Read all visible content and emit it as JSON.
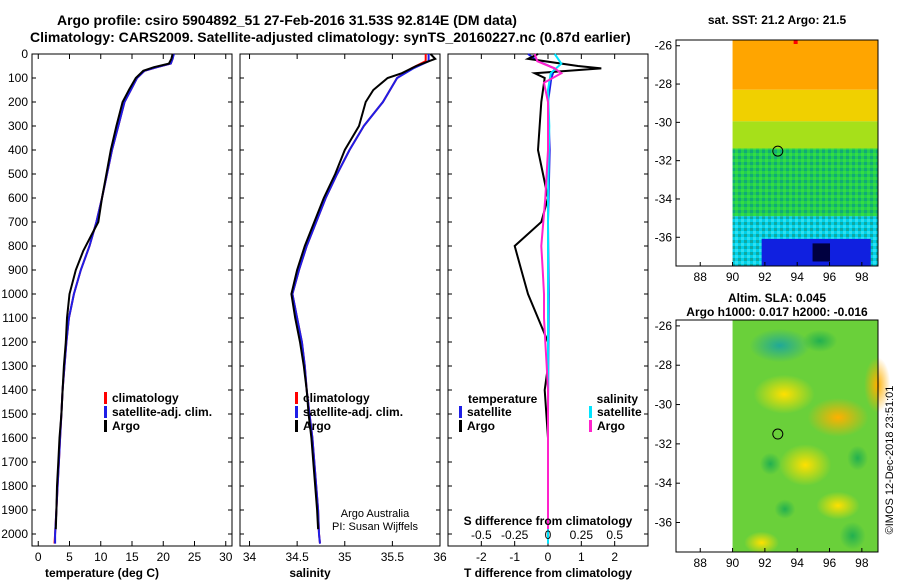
{
  "header": {
    "line1": "Argo profile: csiro 5904892_51 27-Feb-2016 31.53S 92.814E (DM data)",
    "line2": "Climatology: CARS2009. Satellite-adjusted climatology: synTS_20160227.nc (0.87d earlier)"
  },
  "colors": {
    "climatology": "#ff0000",
    "satellite": "#1e1ee6",
    "argo": "#000000",
    "sat_salinity": "#00e5ff",
    "argo_salinity": "#ff22cc"
  },
  "depth_ticks": [
    "0",
    "100",
    "200",
    "300",
    "400",
    "500",
    "600",
    "700",
    "800",
    "900",
    "1000",
    "1100",
    "1200",
    "1300",
    "1400",
    "1500",
    "1600",
    "1700",
    "1800",
    "1900",
    "2000"
  ],
  "chart_data": [
    {
      "type": "line",
      "name": "temperature",
      "xlabel": "temperature (deg C)",
      "xlim": [
        -1,
        31
      ],
      "ylim": [
        2050,
        0
      ],
      "xticks": [
        "0",
        "5",
        "10",
        "15",
        "20",
        "25",
        "30"
      ],
      "legend": {
        "climatology": "climatology",
        "satellite": "satellite-adj. clim.",
        "argo": "Argo"
      },
      "series": [
        {
          "name": "climatology",
          "color": "#ff0000",
          "points": [
            [
              21.6,
              0
            ],
            [
              21.5,
              20
            ],
            [
              21.2,
              40
            ],
            [
              19,
              55
            ],
            [
              17,
              70
            ],
            [
              15.8,
              100
            ],
            [
              14.8,
              150
            ],
            [
              13.8,
              200
            ],
            [
              12.8,
              300
            ],
            [
              11.8,
              400
            ],
            [
              11.0,
              500
            ],
            [
              10.2,
              600
            ],
            [
              9.3,
              700
            ],
            [
              8.2,
              800
            ],
            [
              6.8,
              900
            ],
            [
              5.7,
              1000
            ],
            [
              4.9,
              1100
            ],
            [
              4.5,
              1200
            ],
            [
              4.2,
              1300
            ],
            [
              3.9,
              1400
            ],
            [
              3.7,
              1500
            ],
            [
              3.5,
              1600
            ],
            [
              3.3,
              1700
            ],
            [
              3.1,
              1800
            ],
            [
              2.9,
              1900
            ],
            [
              2.7,
              2000
            ],
            [
              2.6,
              2040
            ]
          ]
        },
        {
          "name": "satellite-adj. clim.",
          "color": "#1e1ee6",
          "points": [
            [
              21.7,
              0
            ],
            [
              21.5,
              20
            ],
            [
              21.2,
              40
            ],
            [
              19,
              55
            ],
            [
              17,
              70
            ],
            [
              15.8,
              100
            ],
            [
              14.8,
              150
            ],
            [
              13.8,
              200
            ],
            [
              12.8,
              300
            ],
            [
              11.8,
              400
            ],
            [
              11.0,
              500
            ],
            [
              10.2,
              600
            ],
            [
              9.3,
              700
            ],
            [
              8.2,
              800
            ],
            [
              6.8,
              900
            ],
            [
              5.7,
              1000
            ],
            [
              4.9,
              1100
            ],
            [
              4.5,
              1200
            ],
            [
              4.2,
              1300
            ],
            [
              3.9,
              1400
            ],
            [
              3.7,
              1500
            ],
            [
              3.5,
              1600
            ],
            [
              3.3,
              1700
            ],
            [
              3.1,
              1800
            ],
            [
              2.9,
              1900
            ],
            [
              2.7,
              2000
            ],
            [
              2.7,
              2040
            ]
          ]
        },
        {
          "name": "Argo",
          "color": "#000000",
          "points": [
            [
              21.5,
              0
            ],
            [
              21.3,
              20
            ],
            [
              20.9,
              40
            ],
            [
              18.5,
              55
            ],
            [
              16.8,
              70
            ],
            [
              15.6,
              100
            ],
            [
              14.5,
              150
            ],
            [
              13.5,
              200
            ],
            [
              12.5,
              300
            ],
            [
              11.6,
              400
            ],
            [
              10.9,
              500
            ],
            [
              10.2,
              600
            ],
            [
              9.6,
              700
            ],
            [
              8.6,
              750
            ],
            [
              7.2,
              820
            ],
            [
              6.0,
              900
            ],
            [
              5.0,
              1000
            ],
            [
              4.6,
              1100
            ],
            [
              4.4,
              1200
            ],
            [
              4.1,
              1300
            ],
            [
              3.9,
              1400
            ],
            [
              3.7,
              1500
            ],
            [
              3.4,
              1600
            ],
            [
              3.2,
              1700
            ],
            [
              3.0,
              1800
            ],
            [
              2.9,
              1900
            ],
            [
              2.8,
              1980
            ]
          ]
        }
      ]
    },
    {
      "type": "line",
      "name": "salinity",
      "xlabel": "salinity",
      "xlim": [
        33.9,
        36.0
      ],
      "ylim": [
        2050,
        0
      ],
      "xticks": [
        "34",
        "34.5",
        "35",
        "35.5",
        "36"
      ],
      "legend": {
        "climatology": "climatology",
        "satellite": "satellite-adj. clim.",
        "argo": "Argo"
      },
      "annotation": [
        "Argo Australia",
        "PI: Susan Wijffels"
      ],
      "series": [
        {
          "name": "climatology",
          "color": "#ff0000",
          "points": [
            [
              35.85,
              0
            ],
            [
              35.85,
              30
            ],
            [
              35.7,
              60
            ],
            [
              35.55,
              100
            ],
            [
              35.4,
              200
            ],
            [
              35.2,
              300
            ],
            [
              35.05,
              400
            ],
            [
              34.92,
              500
            ],
            [
              34.8,
              600
            ],
            [
              34.7,
              700
            ],
            [
              34.6,
              800
            ],
            [
              34.52,
              900
            ],
            [
              34.45,
              1000
            ],
            [
              34.5,
              1100
            ],
            [
              34.55,
              1200
            ],
            [
              34.58,
              1300
            ],
            [
              34.6,
              1400
            ],
            [
              34.63,
              1500
            ],
            [
              34.66,
              1600
            ],
            [
              34.68,
              1700
            ],
            [
              34.7,
              1800
            ],
            [
              34.72,
              1900
            ],
            [
              34.73,
              2000
            ],
            [
              34.74,
              2040
            ]
          ]
        },
        {
          "name": "satellite-adj. clim.",
          "color": "#1e1ee6",
          "points": [
            [
              35.88,
              0
            ],
            [
              35.88,
              30
            ],
            [
              35.72,
              60
            ],
            [
              35.55,
              100
            ],
            [
              35.4,
              200
            ],
            [
              35.2,
              300
            ],
            [
              35.05,
              400
            ],
            [
              34.92,
              500
            ],
            [
              34.8,
              600
            ],
            [
              34.7,
              700
            ],
            [
              34.6,
              800
            ],
            [
              34.52,
              900
            ],
            [
              34.45,
              1000
            ],
            [
              34.5,
              1100
            ],
            [
              34.55,
              1200
            ],
            [
              34.58,
              1300
            ],
            [
              34.6,
              1400
            ],
            [
              34.63,
              1500
            ],
            [
              34.66,
              1600
            ],
            [
              34.68,
              1700
            ],
            [
              34.7,
              1800
            ],
            [
              34.72,
              1900
            ],
            [
              34.73,
              2000
            ],
            [
              34.74,
              2040
            ]
          ]
        },
        {
          "name": "Argo",
          "color": "#000000",
          "points": [
            [
              35.9,
              0
            ],
            [
              35.95,
              20
            ],
            [
              35.75,
              50
            ],
            [
              35.6,
              80
            ],
            [
              35.45,
              100
            ],
            [
              35.3,
              150
            ],
            [
              35.22,
              200
            ],
            [
              35.15,
              300
            ],
            [
              35.0,
              400
            ],
            [
              34.9,
              500
            ],
            [
              34.78,
              600
            ],
            [
              34.68,
              700
            ],
            [
              34.58,
              800
            ],
            [
              34.5,
              900
            ],
            [
              34.44,
              1000
            ],
            [
              34.48,
              1100
            ],
            [
              34.53,
              1200
            ],
            [
              34.57,
              1300
            ],
            [
              34.6,
              1400
            ],
            [
              34.62,
              1500
            ],
            [
              34.65,
              1600
            ],
            [
              34.67,
              1700
            ],
            [
              34.69,
              1800
            ],
            [
              34.71,
              1900
            ],
            [
              34.72,
              1980
            ]
          ]
        }
      ]
    },
    {
      "type": "line",
      "name": "difference",
      "xlabel": "T difference from climatology",
      "xlabel_top": "S difference from climatology",
      "xlim": [
        -3,
        3
      ],
      "ylim": [
        2050,
        0
      ],
      "xticks": [
        "-2",
        "-1",
        "0",
        "1",
        "2"
      ],
      "xticks_top": [
        "-0.5",
        "-0.25",
        "0",
        "0.25",
        "0.5"
      ],
      "legend": {
        "temperature": "temperature",
        "salinity": "salinity",
        "satellite": "satellite",
        "argo": "Argo"
      },
      "series": [
        {
          "name": "temperature satellite",
          "color": "#1e1ee6",
          "points": [
            [
              -0.6,
              0
            ],
            [
              -0.3,
              30
            ],
            [
              0.2,
              60
            ],
            [
              0.1,
              100
            ],
            [
              0.0,
              200
            ],
            [
              0.05,
              400
            ],
            [
              0.0,
              700
            ],
            [
              0.02,
              1000
            ],
            [
              0.0,
              1500
            ],
            [
              0.0,
              2000
            ]
          ]
        },
        {
          "name": "temperature Argo",
          "color": "#000000",
          "points": [
            [
              -0.3,
              0
            ],
            [
              -0.6,
              20
            ],
            [
              0.9,
              50
            ],
            [
              1.6,
              60
            ],
            [
              -0.4,
              80
            ],
            [
              -0.1,
              100
            ],
            [
              -0.2,
              200
            ],
            [
              -0.3,
              400
            ],
            [
              0.0,
              600
            ],
            [
              -0.2,
              700
            ],
            [
              -1.0,
              800
            ],
            [
              -0.8,
              900
            ],
            [
              -0.6,
              1000
            ],
            [
              -0.3,
              1100
            ],
            [
              0.0,
              1200
            ],
            [
              0.0,
              1300
            ],
            [
              -0.1,
              1400
            ],
            [
              0.0,
              1600
            ],
            [
              0.0,
              1800
            ],
            [
              0.0,
              1980
            ]
          ]
        },
        {
          "name": "salinity satellite",
          "color": "#00e5ff",
          "points": [
            [
              0.05,
              0
            ],
            [
              0.1,
              40
            ],
            [
              0.02,
              80
            ],
            [
              0.0,
              150
            ],
            [
              0.01,
              300
            ],
            [
              0.0,
              600
            ],
            [
              0.0,
              1000
            ],
            [
              0.0,
              1500
            ],
            [
              0.0,
              2040
            ]
          ]
        },
        {
          "name": "salinity Argo",
          "color": "#ff22cc",
          "points": [
            [
              -0.1,
              0
            ],
            [
              -0.08,
              30
            ],
            [
              0.05,
              60
            ],
            [
              0.1,
              80
            ],
            [
              -0.03,
              120
            ],
            [
              0.0,
              200
            ],
            [
              0.0,
              400
            ],
            [
              -0.02,
              600
            ],
            [
              -0.05,
              800
            ],
            [
              -0.04,
              900
            ],
            [
              -0.03,
              1000
            ],
            [
              -0.03,
              1100
            ],
            [
              -0.02,
              1200
            ],
            [
              -0.01,
              1300
            ],
            [
              0.0,
              1400
            ],
            [
              0.0,
              1500
            ],
            [
              0.0,
              1980
            ]
          ]
        }
      ]
    },
    {
      "type": "heatmap",
      "name": "sst_map",
      "title": "sat. SST: 21.2 Argo: 21.5",
      "xticks": [
        "88",
        "90",
        "92",
        "94",
        "96",
        "98"
      ],
      "yticks": [
        "-26",
        "-28",
        "-30",
        "-32",
        "-34",
        "-36"
      ],
      "xlim": [
        86.5,
        99
      ],
      "ylim": [
        -37.5,
        -25.7
      ],
      "marker": [
        92.8,
        -31.5
      ]
    },
    {
      "type": "heatmap",
      "name": "sla_map",
      "title_line1": "Altim. SLA: 0.045",
      "title_line2": "Argo h1000: 0.017 h2000: -0.016",
      "xticks": [
        "88",
        "90",
        "92",
        "94",
        "96",
        "98"
      ],
      "yticks": [
        "-26",
        "-28",
        "-30",
        "-32",
        "-34",
        "-36"
      ],
      "xlim": [
        86.5,
        99
      ],
      "ylim": [
        -37.5,
        -25.7
      ],
      "marker": [
        92.8,
        -31.5
      ]
    }
  ],
  "credit": "©IMOS 12-Dec-2018 23:51:01"
}
